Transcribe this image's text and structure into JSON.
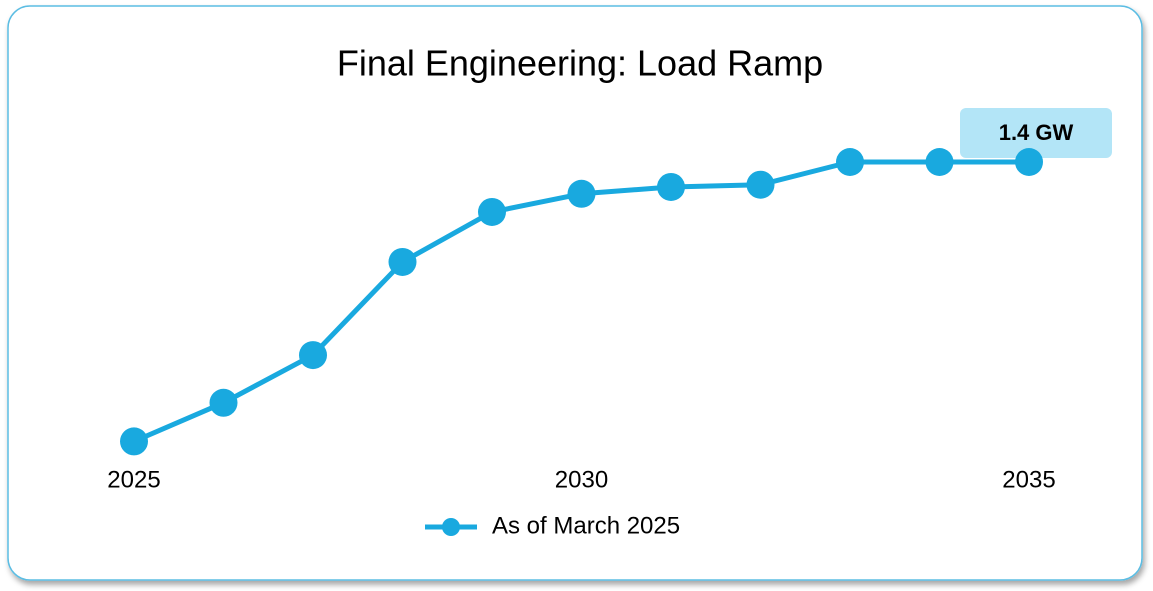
{
  "chart_data": {
    "type": "line",
    "title": "Final Engineering: Load Ramp",
    "annotation": "1.4 GW",
    "x": [
      2025,
      2026,
      2027,
      2028,
      2029,
      2030,
      2031,
      2032,
      2033,
      2034,
      2035
    ],
    "series": [
      {
        "name": "As of March 2025",
        "color": "#19a9df",
        "values": [
          0.17,
          0.34,
          0.55,
          0.96,
          1.18,
          1.26,
          1.29,
          1.3,
          1.4,
          1.4,
          1.4
        ]
      }
    ],
    "xlim": [
      2025,
      2035
    ],
    "xticks": [
      2025,
      2030,
      2035
    ],
    "ylim": [
      0,
      1.4
    ],
    "legend": "bottom",
    "grid": false
  }
}
